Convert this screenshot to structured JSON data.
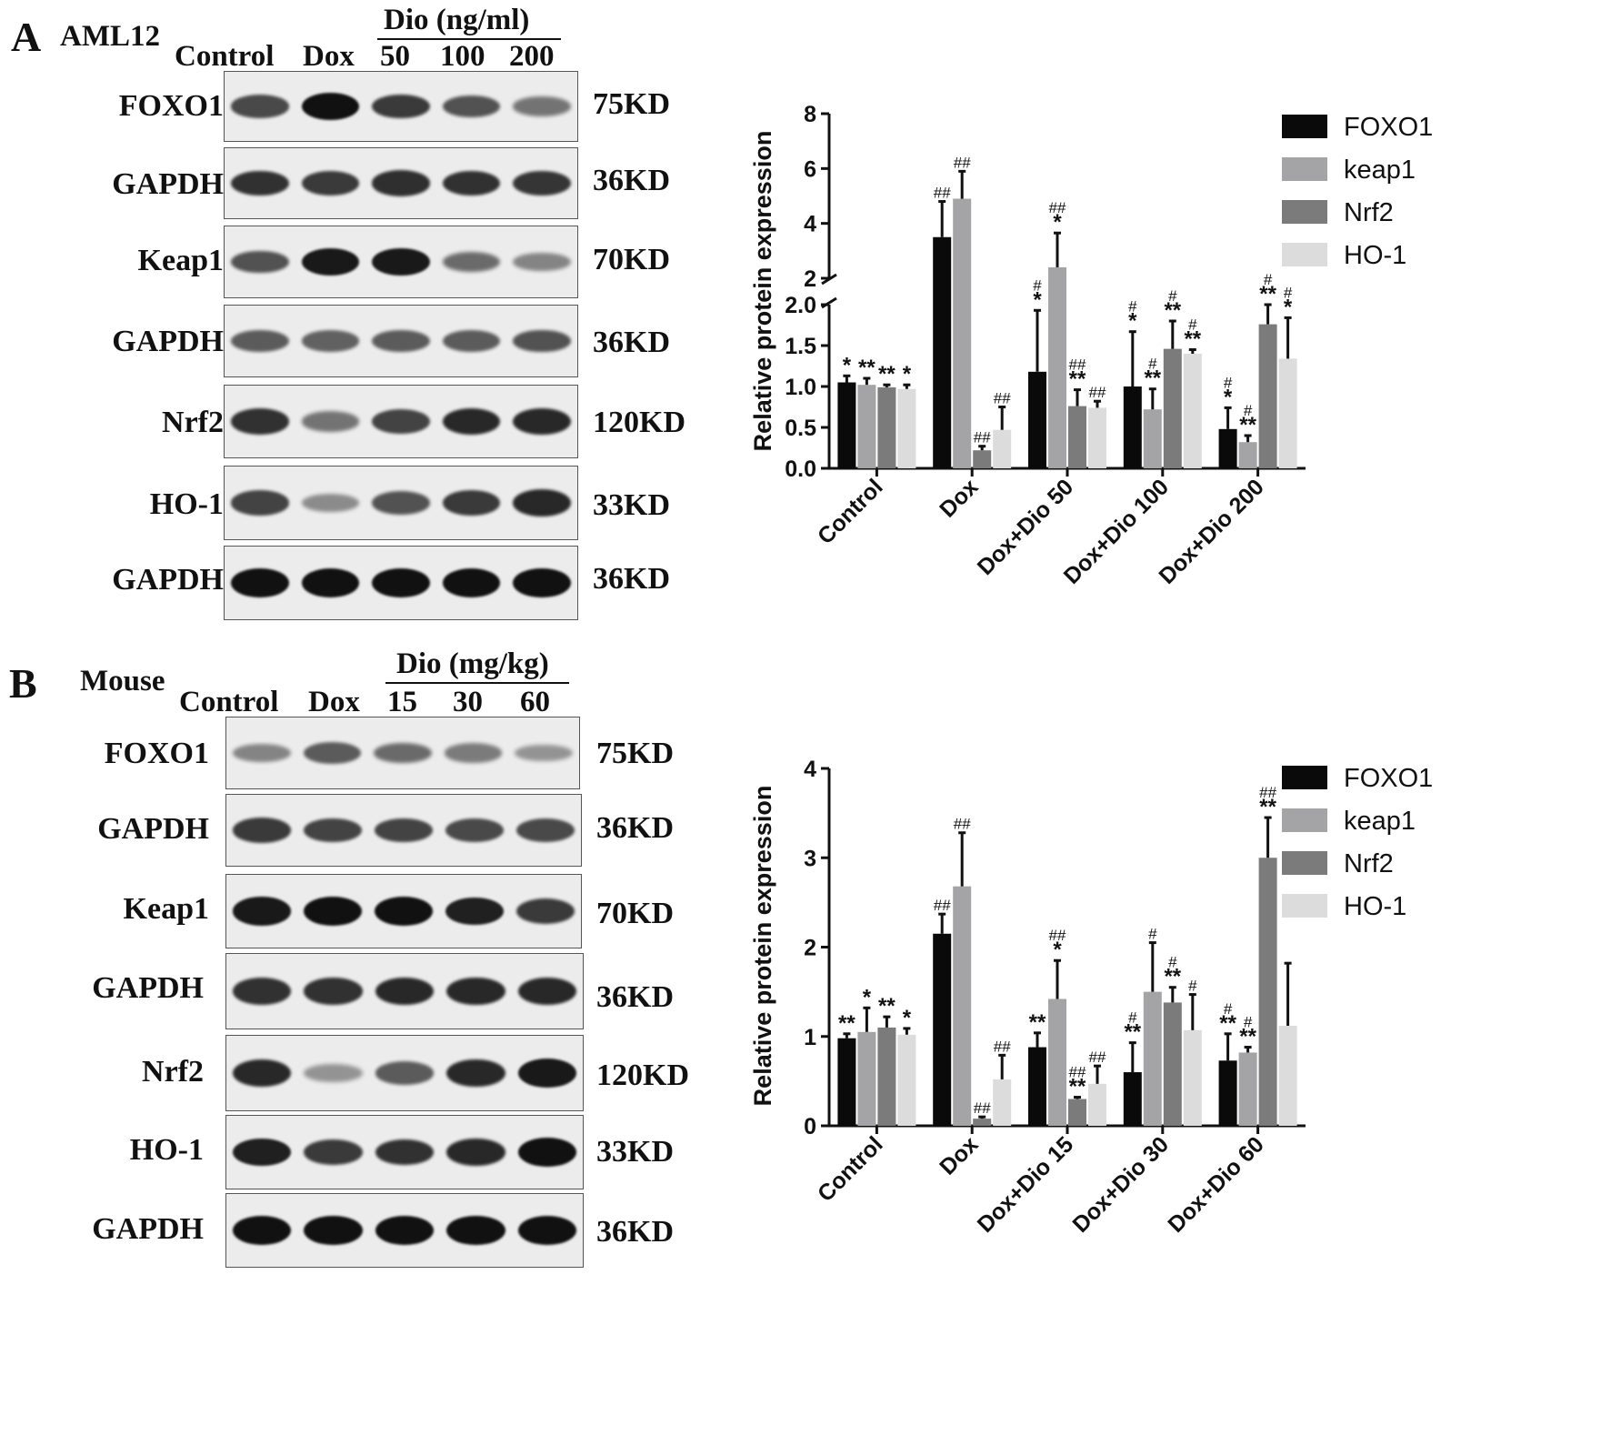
{
  "panels": [
    {
      "letter": "A",
      "model": "AML12",
      "dose_header": "Dio (ng/ml)",
      "lanes": [
        "Control",
        "Dox",
        "50",
        "100",
        "200"
      ],
      "blots": [
        {
          "name": "FOXO1",
          "kd": "75KD",
          "intensity": [
            0.65,
            1.0,
            0.75,
            0.6,
            0.4
          ]
        },
        {
          "name": "GAPDH",
          "kd": "36KD",
          "intensity": [
            0.8,
            0.75,
            0.82,
            0.8,
            0.78
          ]
        },
        {
          "name": "Keap1",
          "kd": "70KD",
          "intensity": [
            0.6,
            0.95,
            0.95,
            0.45,
            0.3
          ]
        },
        {
          "name": "GAPDH",
          "kd": "36KD",
          "intensity": [
            0.55,
            0.5,
            0.55,
            0.55,
            0.6
          ]
        },
        {
          "name": "Nrf2",
          "kd": "120KD",
          "intensity": [
            0.8,
            0.4,
            0.7,
            0.85,
            0.85
          ]
        },
        {
          "name": "HO-1",
          "kd": "33KD",
          "intensity": [
            0.7,
            0.25,
            0.6,
            0.75,
            0.85
          ]
        },
        {
          "name": "GAPDH",
          "kd": "36KD",
          "intensity": [
            1.0,
            1.0,
            1.0,
            1.0,
            1.0
          ]
        }
      ]
    },
    {
      "letter": "B",
      "model": "Mouse",
      "dose_header": "Dio (mg/kg)",
      "lanes": [
        "Control",
        "Dox",
        "15",
        "30",
        "60"
      ],
      "blots": [
        {
          "name": "FOXO1",
          "kd": "75KD",
          "intensity": [
            0.3,
            0.55,
            0.45,
            0.35,
            0.2
          ]
        },
        {
          "name": "GAPDH",
          "kd": "36KD",
          "intensity": [
            0.75,
            0.7,
            0.7,
            0.65,
            0.65
          ]
        },
        {
          "name": "Keap1",
          "kd": "70KD",
          "intensity": [
            0.95,
            1.0,
            1.0,
            0.9,
            0.75
          ]
        },
        {
          "name": "GAPDH",
          "kd": "36KD",
          "intensity": [
            0.8,
            0.8,
            0.85,
            0.85,
            0.85
          ]
        },
        {
          "name": "Nrf2",
          "kd": "120KD",
          "intensity": [
            0.85,
            0.2,
            0.55,
            0.85,
            0.95
          ]
        },
        {
          "name": "HO-1",
          "kd": "33KD",
          "intensity": [
            0.9,
            0.75,
            0.8,
            0.85,
            1.0
          ]
        },
        {
          "name": "GAPDH",
          "kd": "36KD",
          "intensity": [
            1.0,
            1.0,
            1.0,
            1.0,
            1.0
          ]
        }
      ]
    }
  ],
  "colors": {
    "FOXO1": "#0a0a0a",
    "keap1": "#a4a4a6",
    "Nrf2": "#7b7b7b",
    "HO-1": "#dcdcdc"
  },
  "chart_data": [
    {
      "type": "bar",
      "ylabel": "Relative protein expression",
      "categories": [
        "Control",
        "Dox",
        "Dox+Dio 50",
        "Dox+Dio 100",
        "Dox+Dio 200"
      ],
      "broken_axis": true,
      "ylim_lower": [
        0,
        2.0
      ],
      "ylim_upper": [
        2,
        8
      ],
      "yticks_lower": [
        "0.0",
        "0.5",
        "1.0",
        "1.5",
        "2.0"
      ],
      "yticks_upper": [
        "2",
        "4",
        "6",
        "8"
      ],
      "legend_position": "top-right",
      "series": [
        {
          "name": "FOXO1",
          "values": [
            1.05,
            3.5,
            1.18,
            1.0,
            0.48
          ],
          "errors": [
            0.08,
            1.3,
            0.75,
            0.67,
            0.26
          ],
          "marks": [
            "*",
            "##",
            "#\n*",
            "#\n*",
            "#\n*"
          ]
        },
        {
          "name": "keap1",
          "values": [
            1.02,
            4.9,
            2.4,
            0.72,
            0.32
          ],
          "errors": [
            0.08,
            1.0,
            1.25,
            0.25,
            0.08
          ],
          "marks": [
            "**",
            "##",
            "##\n*",
            "#\n**",
            "#\n**"
          ]
        },
        {
          "name": "Nrf2",
          "values": [
            0.99,
            0.22,
            0.76,
            1.46,
            1.76
          ],
          "errors": [
            0.03,
            0.05,
            0.2,
            0.34,
            0.24
          ],
          "marks": [
            "**",
            "##",
            "##\n**",
            "#\n**",
            "#\n**"
          ]
        },
        {
          "name": "HO-1",
          "values": [
            0.97,
            0.47,
            0.74,
            1.4,
            1.34
          ],
          "errors": [
            0.05,
            0.28,
            0.08,
            0.05,
            0.5
          ],
          "marks": [
            "*",
            "##",
            "##",
            "#\n**",
            "#\n*"
          ]
        }
      ]
    },
    {
      "type": "bar",
      "ylabel": "Relative protein expression",
      "categories": [
        "Control",
        "Dox",
        "Dox+Dio 15",
        "Dox+Dio 30",
        "Dox+Dio 60"
      ],
      "ylim": [
        0,
        4
      ],
      "yticks": [
        "0",
        "1",
        "2",
        "3",
        "4"
      ],
      "legend_position": "top-right",
      "series": [
        {
          "name": "FOXO1",
          "values": [
            0.98,
            2.15,
            0.88,
            0.6,
            0.73
          ],
          "errors": [
            0.05,
            0.22,
            0.16,
            0.33,
            0.3
          ],
          "marks": [
            "**",
            "##",
            "**",
            "#\n**",
            "#\n**"
          ]
        },
        {
          "name": "keap1",
          "values": [
            1.05,
            2.68,
            1.42,
            1.5,
            0.82
          ],
          "errors": [
            0.27,
            0.6,
            0.43,
            0.55,
            0.06
          ],
          "marks": [
            "*",
            "##",
            "##\n*",
            "#",
            "#\n**"
          ]
        },
        {
          "name": "Nrf2",
          "values": [
            1.1,
            0.08,
            0.3,
            1.38,
            3.0
          ],
          "errors": [
            0.12,
            0.02,
            0.02,
            0.17,
            0.45
          ],
          "marks": [
            "**",
            "##",
            "##\n**",
            "#\n**",
            "##\n**"
          ]
        },
        {
          "name": "HO-1",
          "values": [
            1.02,
            0.52,
            0.47,
            1.07,
            1.12
          ],
          "errors": [
            0.07,
            0.27,
            0.2,
            0.4,
            0.7
          ],
          "marks": [
            "*",
            "##",
            "##",
            "#",
            ""
          ]
        }
      ]
    }
  ]
}
